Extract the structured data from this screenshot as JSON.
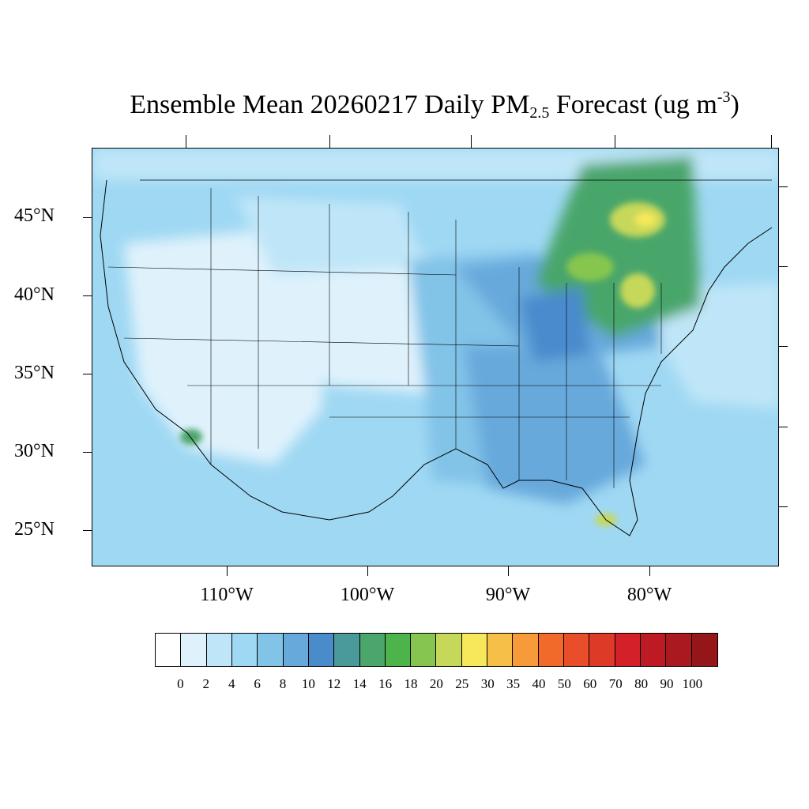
{
  "title": {
    "prefix": "Ensemble Mean 20260217 Daily PM",
    "subscript": "2.5",
    "middle": " Forecast (ug m",
    "superscript": "-3",
    "suffix": ")"
  },
  "lat_labels": [
    "45°N",
    "40°N",
    "35°N",
    "30°N",
    "25°N"
  ],
  "lon_labels": [
    "110°W",
    "100°W",
    "90°W",
    "80°W"
  ],
  "colorbar": {
    "colors": [
      "#ffffff",
      "#dff2fc",
      "#bfe6f8",
      "#9fd8f3",
      "#82c3e8",
      "#68a9dc",
      "#4a8bcc",
      "#4a9a9a",
      "#4aa66a",
      "#4cb44a",
      "#86c650",
      "#c6d85a",
      "#f6e85a",
      "#f6c048",
      "#f69a3a",
      "#f26a2a",
      "#e84e2a",
      "#de3a28",
      "#d42028",
      "#be1a24",
      "#aa1820",
      "#941618"
    ],
    "labels": [
      "0",
      "2",
      "4",
      "6",
      "8",
      "10",
      "12",
      "14",
      "16",
      "18",
      "20",
      "25",
      "30",
      "35",
      "40",
      "50",
      "60",
      "70",
      "80",
      "90",
      "100"
    ]
  }
}
